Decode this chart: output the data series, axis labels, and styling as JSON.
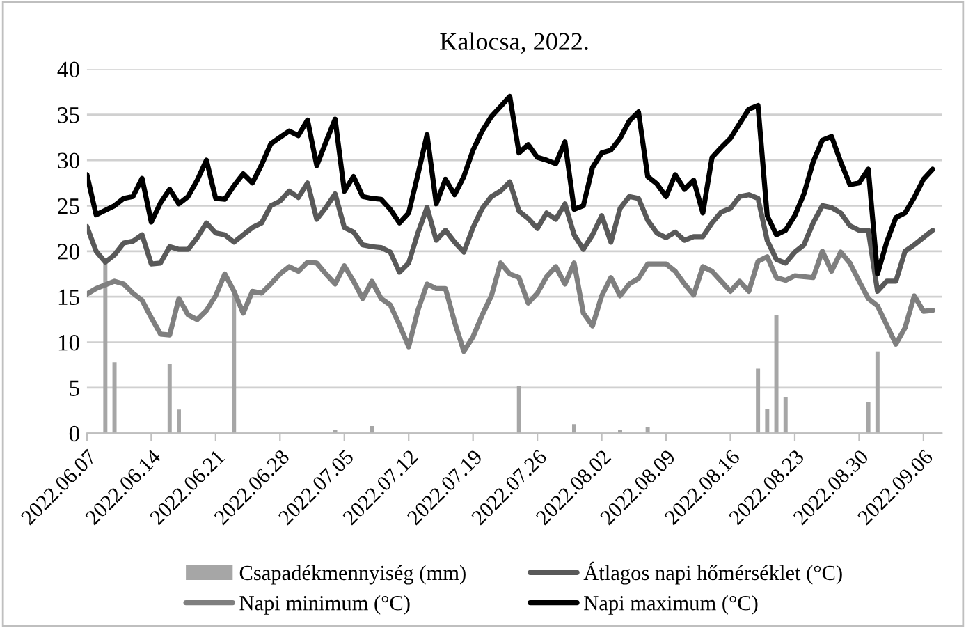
{
  "chart_data": {
    "type": "line",
    "title": "Kalocsa, 2022.",
    "x": [
      "2022-06-07",
      "2022-06-08",
      "2022-06-09",
      "2022-06-10",
      "2022-06-11",
      "2022-06-12",
      "2022-06-13",
      "2022-06-14",
      "2022-06-15",
      "2022-06-16",
      "2022-06-17",
      "2022-06-18",
      "2022-06-19",
      "2022-06-20",
      "2022-06-21",
      "2022-06-22",
      "2022-06-23",
      "2022-06-24",
      "2022-06-25",
      "2022-06-26",
      "2022-06-27",
      "2022-06-28",
      "2022-06-29",
      "2022-06-30",
      "2022-07-01",
      "2022-07-02",
      "2022-07-03",
      "2022-07-04",
      "2022-07-05",
      "2022-07-06",
      "2022-07-07",
      "2022-07-08",
      "2022-07-09",
      "2022-07-10",
      "2022-07-11",
      "2022-07-12",
      "2022-07-13",
      "2022-07-14",
      "2022-07-15",
      "2022-07-16",
      "2022-07-17",
      "2022-07-18",
      "2022-07-19",
      "2022-07-20",
      "2022-07-21",
      "2022-07-22",
      "2022-07-23",
      "2022-07-24",
      "2022-07-25",
      "2022-07-26",
      "2022-07-27",
      "2022-07-28",
      "2022-07-29",
      "2022-07-30",
      "2022-07-31",
      "2022-08-01",
      "2022-08-02",
      "2022-08-03",
      "2022-08-04",
      "2022-08-05",
      "2022-08-06",
      "2022-08-07",
      "2022-08-08",
      "2022-08-09",
      "2022-08-10",
      "2022-08-11",
      "2022-08-12",
      "2022-08-13",
      "2022-08-14",
      "2022-08-15",
      "2022-08-16",
      "2022-08-17",
      "2022-08-18",
      "2022-08-19",
      "2022-08-20",
      "2022-08-21",
      "2022-08-22",
      "2022-08-23",
      "2022-08-24",
      "2022-08-25",
      "2022-08-26",
      "2022-08-27",
      "2022-08-28",
      "2022-08-29",
      "2022-08-30",
      "2022-08-31",
      "2022-09-01",
      "2022-09-02",
      "2022-09-03",
      "2022-09-04",
      "2022-09-05",
      "2022-09-06",
      "2022-09-07"
    ],
    "series": [
      {
        "name": "Csapadékmennyiség (mm)",
        "type": "bar",
        "color": "#a6a6a6",
        "values": [
          null,
          null,
          19,
          7.8,
          null,
          null,
          null,
          null,
          null,
          7.6,
          2.6,
          null,
          null,
          null,
          null,
          null,
          15.3,
          null,
          null,
          null,
          null,
          null,
          null,
          null,
          null,
          null,
          null,
          0.4,
          null,
          null,
          null,
          0.8,
          null,
          null,
          null,
          null,
          null,
          null,
          null,
          null,
          null,
          null,
          null,
          null,
          null,
          null,
          null,
          5.2,
          null,
          null,
          null,
          null,
          null,
          1.0,
          null,
          null,
          null,
          null,
          0.4,
          null,
          null,
          0.7,
          null,
          null,
          null,
          null,
          null,
          null,
          null,
          null,
          null,
          null,
          null,
          7.1,
          2.7,
          13,
          4,
          null,
          null,
          null,
          null,
          null,
          null,
          null,
          null,
          3.4,
          9,
          null,
          null,
          null,
          null,
          null,
          null
        ]
      },
      {
        "name": "Átlagos napi hőmérséklet (°C)",
        "color": "#595959",
        "values": [
          22.7,
          20,
          18.8,
          19.6,
          20.9,
          21.1,
          21.8,
          18.6,
          18.7,
          20.5,
          20.2,
          20.2,
          21.5,
          23.1,
          22,
          21.8,
          21,
          21.8,
          22.6,
          23.1,
          25,
          25.5,
          26.6,
          25.9,
          27.5,
          23.5,
          24.8,
          26.3,
          22.6,
          22.1,
          20.7,
          20.5,
          20.4,
          19.9,
          17.7,
          18.7,
          22,
          24.8,
          21.2,
          22.3,
          21,
          19.9,
          22.6,
          24.7,
          26,
          26.6,
          27.6,
          24.4,
          23.6,
          22.5,
          24.2,
          23.5,
          25.2,
          21.8,
          20.2,
          21.8,
          23.9,
          21,
          24.7,
          26,
          25.8,
          23.4,
          22,
          21.5,
          22.1,
          21.2,
          21.6,
          21.6,
          23.1,
          24.3,
          24.7,
          26,
          26.2,
          25.8,
          21.2,
          19.1,
          18.7,
          19.9,
          20.7,
          23.1,
          25,
          24.8,
          24.2,
          22.8,
          22.3,
          22.3,
          15.6,
          16.7,
          16.7,
          20,
          20.7,
          21.5,
          22.3
        ]
      },
      {
        "name": "Napi minimum (°C)",
        "color": "#7f7f7f",
        "values": [
          15.3,
          15.9,
          16.3,
          16.7,
          16.4,
          15.4,
          14.6,
          12.7,
          10.9,
          10.8,
          14.8,
          13,
          12.5,
          13.5,
          15.1,
          17.5,
          15.6,
          13.2,
          15.6,
          15.4,
          16.4,
          17.5,
          18.3,
          17.8,
          18.8,
          18.7,
          17.5,
          16.4,
          18.4,
          16.7,
          14.8,
          16.7,
          14.8,
          14.1,
          11.9,
          9.5,
          13.5,
          16.4,
          15.9,
          15.9,
          12.2,
          9,
          10.6,
          13,
          15.1,
          18.7,
          17.5,
          17.1,
          14.3,
          15.4,
          17.2,
          18.3,
          16.4,
          18.7,
          13.2,
          11.8,
          15.1,
          17.1,
          15.1,
          16.4,
          17,
          18.6,
          18.6,
          18.6,
          17.8,
          16.4,
          15.2,
          18.3,
          17.8,
          16.7,
          15.6,
          16.7,
          15.6,
          18.9,
          19.4,
          17.1,
          16.8,
          17.3,
          17.2,
          17.1,
          20,
          17.8,
          19.9,
          18.7,
          16.7,
          14.8,
          14,
          11.9,
          9.8,
          11.6,
          15.1,
          13.4,
          13.5
        ]
      },
      {
        "name": "Napi maximum (°C)",
        "color": "#000000",
        "values": [
          28.4,
          24,
          24.5,
          25,
          25.8,
          26,
          28,
          23.2,
          25.3,
          26.8,
          25.2,
          26,
          27.8,
          30,
          25.8,
          25.7,
          27.2,
          28.5,
          27.5,
          29.5,
          31.8,
          32.5,
          33.2,
          32.7,
          34.4,
          29.4,
          32,
          34.5,
          26.6,
          28.2,
          26,
          25.8,
          25.7,
          24.6,
          23.1,
          24.2,
          28.4,
          32.8,
          25.2,
          27.9,
          26.2,
          28.2,
          31.1,
          33.2,
          34.8,
          35.9,
          37,
          30.8,
          31.7,
          30.3,
          30,
          29.6,
          32,
          24.6,
          25,
          29.2,
          30.8,
          31.1,
          32.4,
          34.3,
          35.3,
          28.2,
          27.4,
          26,
          28.4,
          26.8,
          27.8,
          24.2,
          30.3,
          31.4,
          32.4,
          34,
          35.6,
          36,
          23.9,
          21.8,
          22.3,
          23.9,
          26.3,
          29.8,
          32.2,
          32.6,
          29.8,
          27.3,
          27.5,
          29,
          17.5,
          21,
          23.7,
          24.2,
          25.9,
          27.9,
          29
        ]
      }
    ],
    "xlim": [
      "2022-06-07",
      "2022-09-08"
    ],
    "xticks": [
      {
        "value": "2022-06-07",
        "label": "2022.06.07"
      },
      {
        "value": "2022-06-14",
        "label": "2022.06.14"
      },
      {
        "value": "2022-06-21",
        "label": "2022.06.21"
      },
      {
        "value": "2022-06-28",
        "label": "2022.06.28"
      },
      {
        "value": "2022-07-05",
        "label": "2022.07.05"
      },
      {
        "value": "2022-07-12",
        "label": "2022.07.12"
      },
      {
        "value": "2022-07-19",
        "label": "2022.07.19"
      },
      {
        "value": "2022-07-26",
        "label": "2022.07.26"
      },
      {
        "value": "2022-08-02",
        "label": "2022.08.02"
      },
      {
        "value": "2022-08-09",
        "label": "2022.08.09"
      },
      {
        "value": "2022-08-16",
        "label": "2022.08.16"
      },
      {
        "value": "2022-08-23",
        "label": "2022.08.23"
      },
      {
        "value": "2022-08-30",
        "label": "2022.08.30"
      },
      {
        "value": "2022-09-06",
        "label": "2022.09.06"
      }
    ],
    "ylim": [
      0,
      40
    ],
    "yticks": [
      0,
      5,
      10,
      15,
      20,
      25,
      30,
      35,
      40
    ],
    "grid": "y",
    "legend": "bottom",
    "marker": "none",
    "line_style": "solid"
  }
}
